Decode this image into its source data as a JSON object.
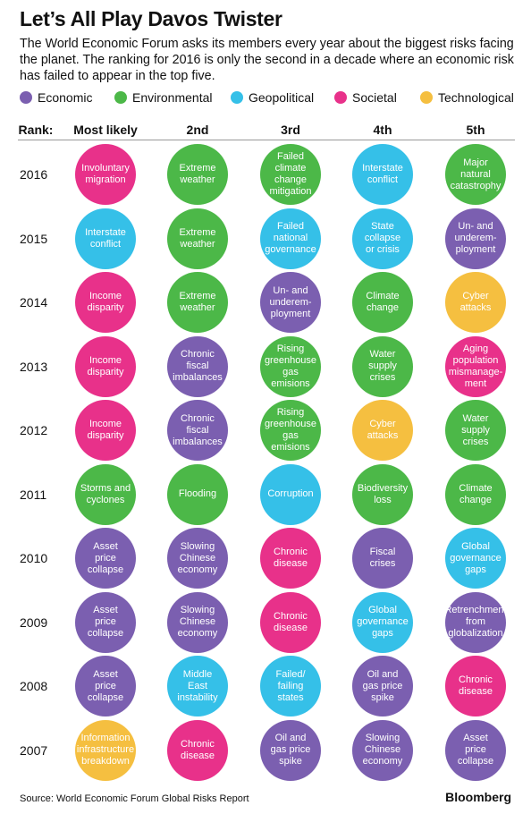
{
  "header": {
    "title": "Let’s All Play Davos Twister",
    "subtitle": "The World Economic Forum asks its members every year about the biggest risks facing the planet. The ranking for 2016 is only the second in a decade where an economic risk has failed to appear in the top five."
  },
  "legend": [
    {
      "name": "Economic",
      "color": "#7b5fb0"
    },
    {
      "name": "Environmental",
      "color": "#4cb848"
    },
    {
      "name": "Geopolitical",
      "color": "#35c0e8"
    },
    {
      "name": "Societal",
      "color": "#e8318a"
    },
    {
      "name": "Technological",
      "color": "#f5bf40"
    }
  ],
  "columns": [
    "Rank:",
    "Most likely",
    "2nd",
    "3rd",
    "4th",
    "5th"
  ],
  "rows": [
    {
      "year": "2016",
      "cells": [
        {
          "label": "Involuntary\nmigration",
          "category": "Societal"
        },
        {
          "label": "Extreme\nweather",
          "category": "Environmental"
        },
        {
          "label": "Failed\nclimate\nchange\nmitigation",
          "category": "Environmental"
        },
        {
          "label": "Interstate\nconflict",
          "category": "Geopolitical"
        },
        {
          "label": "Major\nnatural\ncatastrophy",
          "category": "Environmental"
        }
      ]
    },
    {
      "year": "2015",
      "cells": [
        {
          "label": "Interstate\nconflict",
          "category": "Geopolitical"
        },
        {
          "label": "Extreme\nweather",
          "category": "Environmental"
        },
        {
          "label": "Failed\nnational\ngovernance",
          "category": "Geopolitical"
        },
        {
          "label": "State\ncollapse\nor crisis",
          "category": "Geopolitical"
        },
        {
          "label": "Un- and\nunderem-\nployment",
          "category": "Economic"
        }
      ]
    },
    {
      "year": "2014",
      "cells": [
        {
          "label": "Income\ndisparity",
          "category": "Societal"
        },
        {
          "label": "Extreme\nweather",
          "category": "Environmental"
        },
        {
          "label": "Un- and\nunderem-\nployment",
          "category": "Economic"
        },
        {
          "label": "Climate\nchange",
          "category": "Environmental"
        },
        {
          "label": "Cyber\nattacks",
          "category": "Technological"
        }
      ]
    },
    {
      "year": "2013",
      "cells": [
        {
          "label": "Income\ndisparity",
          "category": "Societal"
        },
        {
          "label": "Chronic\nfiscal\nimbalances",
          "category": "Economic"
        },
        {
          "label": "Rising\ngreenhouse\ngas\nemisions",
          "category": "Environmental"
        },
        {
          "label": "Water\nsupply\ncrises",
          "category": "Environmental"
        },
        {
          "label": "Aging\npopulation\nmismanage-\nment",
          "category": "Societal"
        }
      ]
    },
    {
      "year": "2012",
      "cells": [
        {
          "label": "Income\ndisparity",
          "category": "Societal"
        },
        {
          "label": "Chronic\nfiscal\nimbalances",
          "category": "Economic"
        },
        {
          "label": "Rising\ngreenhouse\ngas\nemisions",
          "category": "Environmental"
        },
        {
          "label": "Cyber\nattacks",
          "category": "Technological"
        },
        {
          "label": "Water\nsupply\ncrises",
          "category": "Environmental"
        }
      ]
    },
    {
      "year": "2011",
      "cells": [
        {
          "label": "Storms and\ncyclones",
          "category": "Environmental"
        },
        {
          "label": "Flooding",
          "category": "Environmental"
        },
        {
          "label": "Corruption",
          "category": "Geopolitical"
        },
        {
          "label": "Biodiversity\nloss",
          "category": "Environmental"
        },
        {
          "label": "Climate\nchange",
          "category": "Environmental"
        }
      ]
    },
    {
      "year": "2010",
      "cells": [
        {
          "label": "Asset\nprice\ncollapse",
          "category": "Economic"
        },
        {
          "label": "Slowing\nChinese\neconomy",
          "category": "Economic"
        },
        {
          "label": "Chronic\ndisease",
          "category": "Societal"
        },
        {
          "label": "Fiscal\ncrises",
          "category": "Economic"
        },
        {
          "label": "Global\ngovernance\ngaps",
          "category": "Geopolitical"
        }
      ]
    },
    {
      "year": "2009",
      "cells": [
        {
          "label": "Asset\nprice\ncollapse",
          "category": "Economic"
        },
        {
          "label": "Slowing\nChinese\neconomy",
          "category": "Economic"
        },
        {
          "label": "Chronic\ndisease",
          "category": "Societal"
        },
        {
          "label": "Global\ngovernance\ngaps",
          "category": "Geopolitical"
        },
        {
          "label": "Retrenchment\nfrom\nglobalization",
          "category": "Economic"
        }
      ]
    },
    {
      "year": "2008",
      "cells": [
        {
          "label": "Asset\nprice\ncollapse",
          "category": "Economic"
        },
        {
          "label": "Middle\nEast\ninstability",
          "category": "Geopolitical"
        },
        {
          "label": "Failed/\nfailing\nstates",
          "category": "Geopolitical"
        },
        {
          "label": "Oil and\ngas price\nspike",
          "category": "Economic"
        },
        {
          "label": "Chronic\ndisease",
          "category": "Societal"
        }
      ]
    },
    {
      "year": "2007",
      "cells": [
        {
          "label": "Information\ninfrastructure\nbreakdown",
          "category": "Technological"
        },
        {
          "label": "Chronic\ndisease",
          "category": "Societal"
        },
        {
          "label": "Oil and\ngas price\nspike",
          "category": "Economic"
        },
        {
          "label": "Slowing\nChinese\neconomy",
          "category": "Economic"
        },
        {
          "label": "Asset\nprice\ncollapse",
          "category": "Economic"
        }
      ]
    }
  ],
  "footer": {
    "source": "Source: World Economic Forum Global Risks Report",
    "brand": "Bloomberg"
  }
}
